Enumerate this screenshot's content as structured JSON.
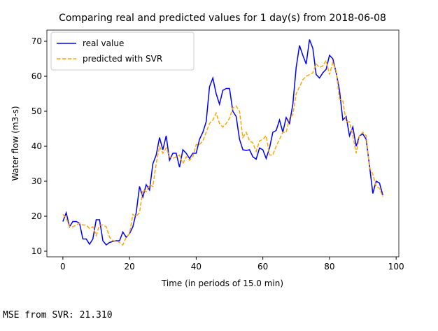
{
  "chart_data": {
    "type": "line",
    "title": "Comparing real and predicted values for 1 day(s) from 2018-06-08",
    "xlabel": "Time (in periods of 15.0 min)",
    "ylabel": "Water flow (m3-s)",
    "x": [
      0,
      1,
      2,
      3,
      4,
      5,
      6,
      7,
      8,
      9,
      10,
      11,
      12,
      13,
      14,
      15,
      16,
      17,
      18,
      19,
      20,
      21,
      22,
      23,
      24,
      25,
      26,
      27,
      28,
      29,
      30,
      31,
      32,
      33,
      34,
      35,
      36,
      37,
      38,
      39,
      40,
      41,
      42,
      43,
      44,
      45,
      46,
      47,
      48,
      49,
      50,
      51,
      52,
      53,
      54,
      55,
      56,
      57,
      58,
      59,
      60,
      61,
      62,
      63,
      64,
      65,
      66,
      67,
      68,
      69,
      70,
      71,
      72,
      73,
      74,
      75,
      76,
      77,
      78,
      79,
      80,
      81,
      82,
      83,
      84,
      85,
      86,
      87,
      88,
      89,
      90,
      91,
      92,
      93,
      94,
      95,
      96
    ],
    "series": [
      {
        "name": "real value",
        "color": "#0000ff",
        "dashed": false,
        "values": [
          18.5,
          21,
          17,
          18.5,
          18.5,
          18,
          13.5,
          13.5,
          12,
          13.5,
          19,
          19,
          13,
          11.8,
          12.5,
          12.8,
          13,
          13,
          15.5,
          14,
          15,
          17,
          21,
          28.5,
          25.5,
          29,
          27.5,
          35,
          37.5,
          42.5,
          39,
          43,
          36,
          38,
          38,
          34,
          39,
          38,
          36.5,
          38,
          38,
          42,
          44,
          47,
          57,
          59.5,
          55,
          52,
          56,
          56.5,
          56.5,
          50,
          48.5,
          42,
          39,
          38.8,
          39,
          37,
          36.3,
          39.5,
          39,
          36.5,
          39.5,
          44,
          44.5,
          47.5,
          44,
          48.2,
          46.5,
          52,
          62.5,
          68.8,
          66,
          63.5,
          70.5,
          68,
          60.5,
          59.5,
          61,
          62,
          66,
          65,
          61,
          56,
          47.5,
          48.5,
          43,
          45.5,
          40,
          43,
          43.5,
          42,
          34.5,
          26.5,
          30,
          29.5,
          26
        ]
      },
      {
        "name": "predicted with SVR",
        "color": "#ffa500",
        "dashed": true,
        "values": [
          20.5,
          19.5,
          17,
          17,
          17.5,
          18,
          17.5,
          17.5,
          16.5,
          17,
          14.5,
          17.5,
          17.5,
          17,
          14,
          13,
          13,
          12.5,
          11.8,
          14,
          15,
          20.5,
          20,
          21,
          27.5,
          27,
          29,
          28.5,
          35,
          40,
          38,
          39.5,
          37,
          36.5,
          37,
          37.5,
          35,
          37,
          36,
          37,
          40.5,
          40.5,
          41.5,
          44,
          46.5,
          47.5,
          49.5,
          46.5,
          45.5,
          46.5,
          48,
          51,
          51.5,
          50,
          42.5,
          44,
          41.5,
          41,
          38.5,
          41.5,
          42,
          43,
          37.5,
          37.5,
          40,
          42,
          44,
          44,
          48,
          49,
          55,
          57,
          59,
          60,
          60.5,
          61,
          63.5,
          62.5,
          63,
          64.5,
          60.5,
          64,
          61.5,
          53.5,
          53,
          47,
          47,
          43,
          38,
          43,
          44,
          43,
          34,
          32,
          28.5,
          28,
          25.5
        ]
      }
    ],
    "xlim": [
      -4.8,
      100.8
    ],
    "xticks": [
      0,
      20,
      40,
      60,
      80,
      100
    ],
    "ylim": [
      8.4,
      73.2
    ],
    "yticks": [
      10,
      20,
      30,
      40,
      50,
      60,
      70
    ],
    "legend": "upper left",
    "grid": false
  },
  "output_text": "MSE from SVR: 21.310"
}
